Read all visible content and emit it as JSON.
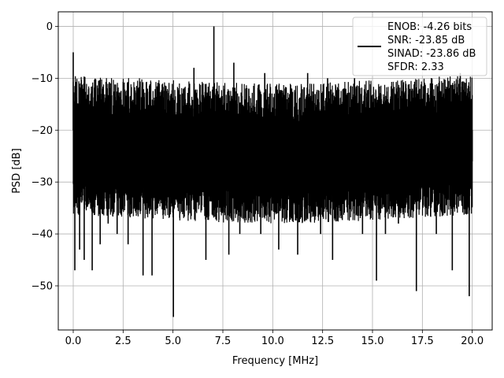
{
  "chart_data": {
    "type": "line",
    "title": "",
    "xlabel": "Frequency [MHz]",
    "ylabel": "PSD [dB]",
    "xlim": [
      -0.75,
      21.0
    ],
    "ylim": [
      -58.5,
      2.8
    ],
    "xticks": [
      0.0,
      2.5,
      5.0,
      7.5,
      10.0,
      12.5,
      15.0,
      17.5,
      20.0
    ],
    "xtick_labels": [
      "0.0",
      "2.5",
      "5.0",
      "7.5",
      "10.0",
      "12.5",
      "15.0",
      "17.5",
      "20.0"
    ],
    "yticks": [
      0,
      -10,
      -20,
      -30,
      -40,
      -50
    ],
    "ytick_labels": [
      "0",
      "−10",
      "−20",
      "−30",
      "−40",
      "−50"
    ],
    "grid": true,
    "legend_position": "top-right",
    "legend_entries": [
      "ENOB: -4.26 bits",
      "SNR: -23.85 dB",
      "SINAD: -23.86 dB",
      "SFDR: 2.33"
    ],
    "series_color": "#000000",
    "series": [
      {
        "x": [
          0.0,
          0.02,
          0.08,
          0.25,
          0.32,
          0.55,
          0.68,
          0.95,
          1.12,
          1.35,
          1.62,
          1.75,
          2.2,
          2.3,
          2.6,
          2.75,
          3.1,
          3.2,
          3.5,
          3.62,
          3.72,
          3.95,
          4.05,
          4.5,
          4.78,
          4.9,
          5.02,
          5.08,
          5.4,
          5.65,
          6.05,
          6.3,
          6.5,
          6.65,
          6.8,
          7.05,
          7.12,
          7.25,
          7.8,
          8.05,
          8.2,
          8.35,
          8.65,
          8.8,
          9.0,
          9.4,
          9.6,
          10.0,
          10.3,
          10.55,
          10.95,
          11.1,
          11.25,
          11.6,
          11.75,
          12.05,
          12.4,
          12.75,
          13.0,
          13.25,
          13.5,
          13.9,
          14.1,
          14.5,
          14.85,
          15.0,
          15.2,
          15.4,
          15.65,
          16.0,
          16.3,
          16.7,
          17.0,
          17.2,
          17.35,
          17.7,
          17.95,
          18.2,
          18.5,
          18.9,
          19.0,
          19.4,
          19.6,
          19.85,
          19.95,
          20.0
        ],
        "y": [
          -5,
          -30,
          -47,
          -20,
          -43,
          -45,
          -25,
          -47,
          -22,
          -42,
          -25,
          -38,
          -40,
          -15,
          -22,
          -42,
          -32,
          -15,
          -48,
          -25,
          -12,
          -48,
          -20,
          -28,
          -25,
          -13,
          -56,
          -20,
          -33,
          -25,
          -8,
          -34,
          -11,
          -45,
          -22,
          0,
          -20,
          -30,
          -44,
          -7,
          -25,
          -40,
          -30,
          -12,
          -25,
          -40,
          -9,
          -30,
          -43,
          -35,
          -12,
          -25,
          -44,
          -30,
          -9,
          -35,
          -40,
          -10,
          -45,
          -20,
          -33,
          -30,
          -10,
          -40,
          -35,
          -20,
          -49,
          -20,
          -40,
          -12,
          -38,
          -30,
          -12,
          -51,
          -25,
          -35,
          -10,
          -40,
          -30,
          -25,
          -47,
          -9,
          -30,
          -52,
          -14,
          -26
        ]
      }
    ]
  }
}
